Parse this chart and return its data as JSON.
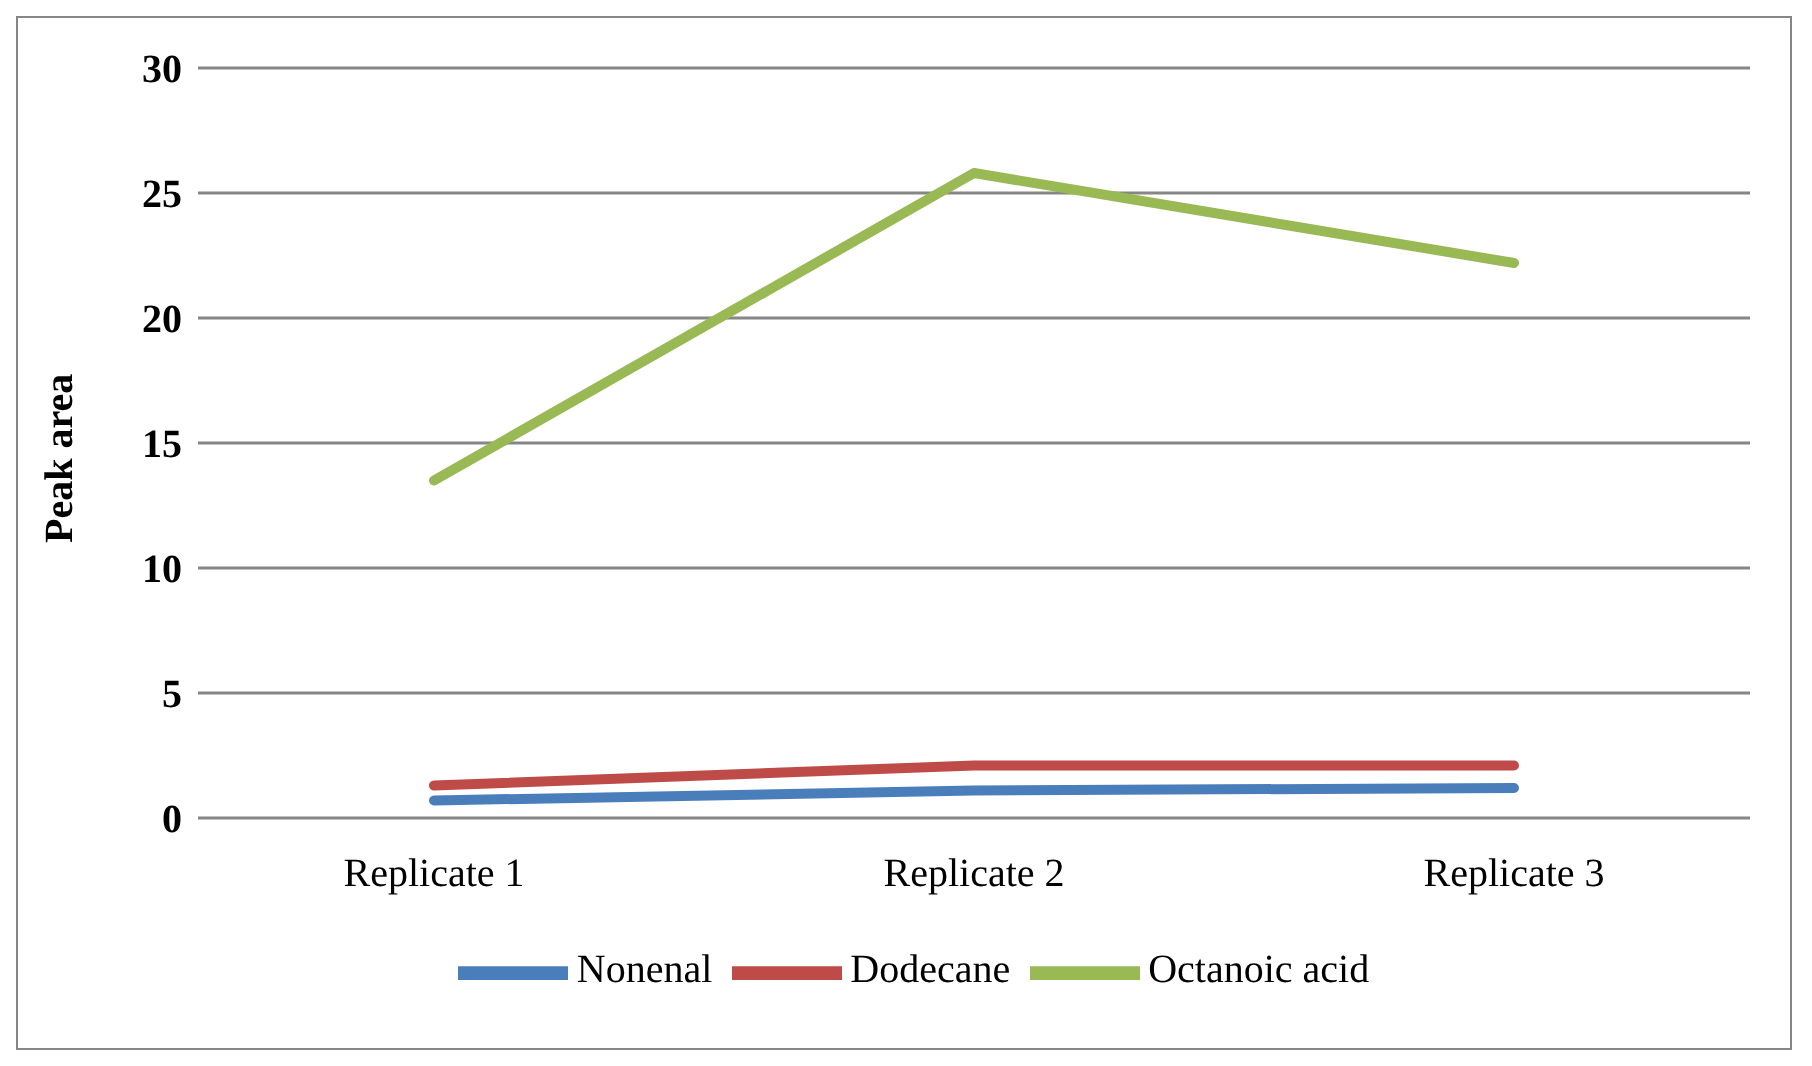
{
  "chart_data": {
    "type": "line",
    "ylabel": "Peak area",
    "categories": [
      "Replicate 1",
      "Replicate 2",
      "Replicate 3"
    ],
    "series": [
      {
        "name": "Nonenal",
        "color": "#4a7ebb",
        "values": [
          0.7,
          1.1,
          1.2
        ]
      },
      {
        "name": "Dodecane",
        "color": "#be4b48",
        "values": [
          1.3,
          2.1,
          2.1
        ]
      },
      {
        "name": "Octanoic acid",
        "color": "#98b954",
        "values": [
          13.5,
          25.8,
          22.2
        ]
      }
    ],
    "ylim": [
      0,
      30
    ],
    "yticks": [
      0,
      5,
      10,
      15,
      20,
      25,
      30
    ],
    "grid": "y",
    "legend": "bottom",
    "marker": "none",
    "line_style": "solid"
  }
}
